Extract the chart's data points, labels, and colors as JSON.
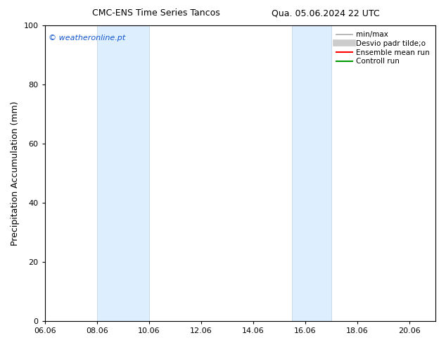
{
  "title_left": "CMC-ENS Time Series Tancos",
  "title_right": "Qua. 05.06.2024 22 UTC",
  "ylabel": "Precipitation Accumulation (mm)",
  "xlim": [
    6.06,
    21.06
  ],
  "ylim": [
    0,
    100
  ],
  "yticks": [
    0,
    20,
    40,
    60,
    80,
    100
  ],
  "xticks": [
    6.06,
    8.06,
    10.06,
    12.06,
    14.06,
    16.06,
    18.06,
    20.06
  ],
  "xticklabels": [
    "06.06",
    "08.06",
    "10.06",
    "12.06",
    "14.06",
    "16.06",
    "18.06",
    "20.06"
  ],
  "shaded_bands": [
    {
      "x_start": 8.06,
      "x_end": 10.06
    },
    {
      "x_start": 15.56,
      "x_end": 17.06
    }
  ],
  "band_color": "#ddeeff",
  "band_color_border": "#bbccdd",
  "watermark_text": "© weatheronline.pt",
  "watermark_color": "#1155cc",
  "legend_items": [
    {
      "label": "min/max",
      "color": "#aaaaaa",
      "lw": 1.2
    },
    {
      "label": "Desvio padr tilde;o",
      "color": "#cccccc",
      "lw": 7
    },
    {
      "label": "Ensemble mean run",
      "color": "#ff0000",
      "lw": 1.5
    },
    {
      "label": "Controll run",
      "color": "#009900",
      "lw": 1.5
    }
  ],
  "bg_color": "#ffffff",
  "tick_fontsize": 8,
  "label_fontsize": 9,
  "title_fontsize": 9,
  "watermark_fontsize": 8,
  "legend_fontsize": 7.5
}
